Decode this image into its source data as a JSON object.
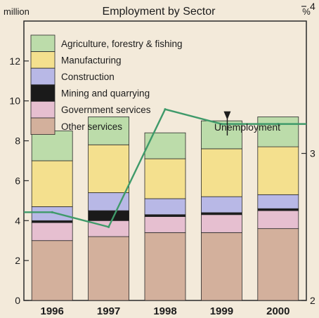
{
  "chart_data": {
    "type": "bar",
    "stacked": true,
    "title": "Employment by Sector",
    "ylabel_left": "million",
    "ylabel_right": "%",
    "categories": [
      "1996",
      "1997",
      "1998",
      "1999",
      "2000"
    ],
    "ylim": [
      0,
      14
    ],
    "y_ticks": [
      0,
      2,
      4,
      6,
      8,
      10,
      12
    ],
    "y2lim": [
      2,
      3.9
    ],
    "y2_ticks": [
      2,
      3,
      4
    ],
    "series": [
      {
        "name": "Other services",
        "color": "#d3b09c",
        "values": [
          3.0,
          3.2,
          3.4,
          3.4,
          3.6
        ]
      },
      {
        "name": "Government services",
        "color": "#e6bfd0",
        "values": [
          0.9,
          0.8,
          0.8,
          0.9,
          0.9
        ]
      },
      {
        "name": "Mining and quarrying",
        "color": "#1a1a1a",
        "values": [
          0.1,
          0.5,
          0.1,
          0.1,
          0.1
        ]
      },
      {
        "name": "Construction",
        "color": "#b8b8e6",
        "values": [
          0.7,
          0.9,
          0.8,
          0.8,
          0.7
        ]
      },
      {
        "name": "Manufacturing",
        "color": "#f4e08e",
        "values": [
          2.3,
          2.4,
          2.0,
          2.4,
          2.4
        ]
      },
      {
        "name": "Agriculture, forestry & fishing",
        "color": "#bcdcaa",
        "values": [
          1.5,
          1.4,
          1.3,
          1.4,
          1.5
        ]
      }
    ],
    "line": {
      "name": "Unemployment",
      "axis": "right",
      "color": "#3f9a6a",
      "values": [
        2.6,
        2.5,
        3.3,
        3.2,
        3.2
      ]
    },
    "annotation": "Unemployment",
    "legend_position": "top-left",
    "grid": false
  }
}
